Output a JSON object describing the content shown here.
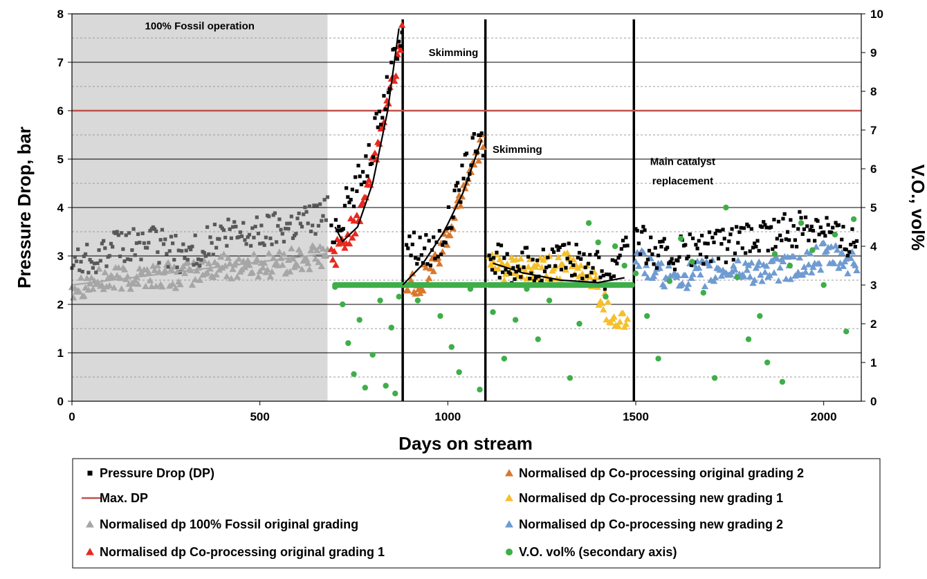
{
  "chart_data": {
    "type": "scatter",
    "xlabel": "Days on stream",
    "ylabel": "Pressure Drop, bar",
    "y2label": "V.O., vol%",
    "xlim": [
      0,
      2100
    ],
    "ylim": [
      0,
      8
    ],
    "y2lim": [
      0,
      10
    ],
    "x_ticks": [
      0,
      500,
      1000,
      1500,
      2000
    ],
    "y_ticks": [
      0,
      1,
      2,
      3,
      4,
      5,
      6,
      7,
      8
    ],
    "y2_ticks": [
      0,
      1,
      2,
      3,
      4,
      5,
      6,
      7,
      8,
      9,
      10
    ],
    "grid": "horizontal",
    "legend_position": "bottom",
    "shaded_region": {
      "x": [
        0,
        680
      ],
      "color": "#d9d9d9"
    },
    "vertical_events_days": [
      880,
      1100,
      1495
    ],
    "max_dp": 6,
    "annotations": [
      {
        "text": "100% Fossil operation",
        "x": 340,
        "y": 7.75
      },
      {
        "text": "Skimming",
        "x": 1015,
        "y": 7.2
      },
      {
        "text": "Skimming",
        "x": 1185,
        "y": 5.2
      },
      {
        "text": "Main catalyst",
        "x": 1625,
        "y": 4.95
      },
      {
        "text": "replacement",
        "x": 1625,
        "y": 4.55
      }
    ],
    "series": [
      {
        "name": "Pressure Drop (DP)",
        "marker": "square",
        "color": "#000000"
      },
      {
        "name": "Max. DP",
        "marker": "line",
        "color": "#c0504d",
        "values": [
          6,
          6
        ]
      },
      {
        "name": "Normalised dp 100% Fossil original grading",
        "marker": "triangle",
        "color": "#a6a6a6"
      },
      {
        "name": "Normalised dp Co-processing original grading 1",
        "marker": "triangle",
        "color": "#e8281e"
      },
      {
        "name": "Normalised dp Co-processing original grading 2",
        "marker": "triangle",
        "color": "#d9782d"
      },
      {
        "name": "Normalised dp Co-processing new grading 1",
        "marker": "triangle",
        "color": "#f5c02c"
      },
      {
        "name": "Normalised dp Co-processing new grading 2",
        "marker": "triangle",
        "color": "#6f9bd1"
      },
      {
        "name": "V.O. vol% (secondary axis)",
        "marker": "circle",
        "color": "#3fae49"
      }
    ],
    "dp_segments": [
      {
        "x": [
          0,
          100,
          200,
          300,
          400,
          500,
          600,
          680
        ],
        "y": [
          2.9,
          3.1,
          3.3,
          3.0,
          3.4,
          3.5,
          3.7,
          3.9
        ],
        "color": "#595959"
      },
      {
        "x": [
          690,
          720,
          760,
          800,
          830,
          860,
          878
        ],
        "y": [
          3.5,
          3.9,
          4.5,
          5.3,
          6.2,
          7.1,
          7.8
        ],
        "color": "#000000"
      },
      {
        "x": [
          890,
          930,
          970,
          1010,
          1040,
          1070,
          1095
        ],
        "y": [
          3.3,
          3.1,
          3.2,
          3.8,
          4.6,
          5.2,
          5.4
        ],
        "color": "#000000"
      },
      {
        "x": [
          1110,
          1180,
          1250,
          1320,
          1380,
          1430,
          1480
        ],
        "y": [
          2.9,
          2.8,
          2.8,
          2.9,
          2.9,
          2.6,
          3.6
        ],
        "color": "#000000"
      },
      {
        "x": [
          1500,
          1560,
          1650,
          1750,
          1850,
          1950,
          2000,
          2050,
          2090
        ],
        "y": [
          3.4,
          3.0,
          3.1,
          3.2,
          3.4,
          3.6,
          3.7,
          3.3,
          3.4
        ],
        "color": "#000000"
      }
    ],
    "norm_segments": [
      {
        "series": 2,
        "x": [
          0,
          100,
          200,
          300,
          400,
          500,
          600,
          680
        ],
        "y": [
          2.4,
          2.5,
          2.6,
          2.6,
          2.8,
          2.8,
          2.9,
          3.0
        ]
      },
      {
        "series": 3,
        "x": [
          690,
          720,
          760,
          800,
          830,
          860,
          878
        ],
        "y": [
          3.0,
          3.2,
          3.8,
          4.8,
          5.8,
          6.8,
          7.6
        ]
      },
      {
        "series": 4,
        "x": [
          890,
          930,
          970,
          1010,
          1040,
          1070,
          1095
        ],
        "y": [
          2.4,
          2.5,
          2.9,
          3.6,
          4.4,
          5.0,
          5.5
        ]
      },
      {
        "series": 5,
        "x": [
          1110,
          1180,
          1250,
          1320,
          1380,
          1430,
          1480
        ],
        "y": [
          2.8,
          2.7,
          2.7,
          2.8,
          2.6,
          1.8,
          1.6
        ]
      },
      {
        "series": 6,
        "x": [
          1500,
          1560,
          1650,
          1750,
          1850,
          1950,
          2000,
          2050,
          2090
        ],
        "y": [
          3.0,
          2.6,
          2.6,
          2.7,
          2.7,
          2.8,
          3.0,
          2.9,
          2.8
        ]
      }
    ],
    "trend_lines": [
      {
        "x": [
          0,
          680
        ],
        "y": [
          2.4,
          3.05
        ],
        "color": "#a6a6a6"
      },
      {
        "x": [
          700,
          720,
          760,
          800,
          840,
          870
        ],
        "y": [
          3.6,
          3.3,
          3.6,
          4.5,
          6.0,
          7.7
        ],
        "color": "#000000"
      },
      {
        "x": [
          880,
          930,
          990,
          1040,
          1090
        ],
        "y": [
          2.4,
          2.8,
          3.5,
          4.3,
          5.4
        ],
        "color": "#000000"
      },
      {
        "x": [
          1120,
          1200,
          1300,
          1400,
          1470
        ],
        "y": [
          2.85,
          2.65,
          2.5,
          2.45,
          2.55
        ],
        "color": "#000000"
      }
    ],
    "vo_points": [
      [
        700,
        2.95
      ],
      [
        720,
        2.5
      ],
      [
        735,
        1.5
      ],
      [
        750,
        0.7
      ],
      [
        765,
        2.1
      ],
      [
        780,
        0.35
      ],
      [
        800,
        1.2
      ],
      [
        820,
        2.6
      ],
      [
        835,
        0.4
      ],
      [
        850,
        1.9
      ],
      [
        860,
        0.2
      ],
      [
        870,
        2.7
      ],
      [
        890,
        3.0
      ],
      [
        920,
        2.6
      ],
      [
        950,
        3.0
      ],
      [
        980,
        2.2
      ],
      [
        1010,
        1.4
      ],
      [
        1030,
        0.75
      ],
      [
        1060,
        2.9
      ],
      [
        1085,
        0.3
      ],
      [
        1120,
        2.3
      ],
      [
        1150,
        1.1
      ],
      [
        1180,
        2.1
      ],
      [
        1210,
        2.9
      ],
      [
        1240,
        1.6
      ],
      [
        1270,
        2.6
      ],
      [
        1300,
        3.0
      ],
      [
        1325,
        0.6
      ],
      [
        1350,
        2.0
      ],
      [
        1375,
        4.6
      ],
      [
        1400,
        4.1
      ],
      [
        1420,
        2.7
      ],
      [
        1445,
        4.0
      ],
      [
        1470,
        3.5
      ],
      [
        1500,
        3.3
      ],
      [
        1530,
        2.2
      ],
      [
        1560,
        1.1
      ],
      [
        1590,
        3.1
      ],
      [
        1620,
        4.2
      ],
      [
        1650,
        3.6
      ],
      [
        1680,
        2.8
      ],
      [
        1710,
        0.6
      ],
      [
        1740,
        5.0
      ],
      [
        1770,
        3.2
      ],
      [
        1800,
        1.6
      ],
      [
        1830,
        2.2
      ],
      [
        1850,
        1.0
      ],
      [
        1870,
        3.8
      ],
      [
        1890,
        0.5
      ],
      [
        1910,
        3.5
      ],
      [
        1940,
        4.6
      ],
      [
        1970,
        3.9
      ],
      [
        2000,
        3.0
      ],
      [
        2030,
        4.3
      ],
      [
        2060,
        1.8
      ],
      [
        2080,
        4.7
      ]
    ],
    "vo_baseline": 3.0
  },
  "legend": [
    {
      "label": "Pressure Drop (DP)"
    },
    {
      "label": "Max. DP"
    },
    {
      "label": "Normalised dp 100% Fossil original grading"
    },
    {
      "label": "Normalised dp Co-processing original grading 1"
    },
    {
      "label": "Normalised dp Co-processing original grading 2"
    },
    {
      "label": "Normalised dp Co-processing new grading 1"
    },
    {
      "label": "Normalised dp Co-processing new grading 2"
    },
    {
      "label": "V.O. vol% (secondary axis)"
    }
  ]
}
